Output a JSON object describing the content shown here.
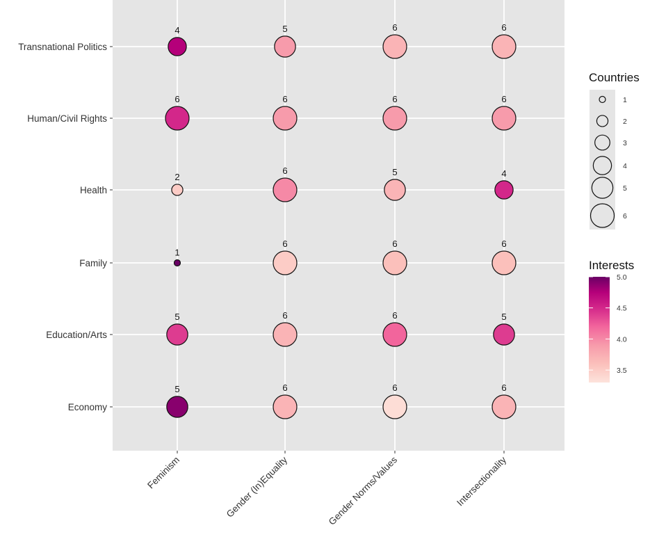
{
  "chart_data": {
    "type": "scatter",
    "title": "",
    "xlabel": "",
    "ylabel": "",
    "x_categories": [
      "Feminism",
      "Gender (In)Equality",
      "Gender Norms/Values",
      "Intersectionality"
    ],
    "y_categories": [
      "Transnational Politics",
      "Human/Civil Rights",
      "Health",
      "Family",
      "Education/Arts",
      "Economy"
    ],
    "points": [
      {
        "x": "Feminism",
        "y": "Transnational Politics",
        "countries": 4,
        "interests": 4.75
      },
      {
        "x": "Gender (In)Equality",
        "y": "Transnational Politics",
        "countries": 5,
        "interests": 3.9
      },
      {
        "x": "Gender Norms/Values",
        "y": "Transnational Politics",
        "countries": 6,
        "interests": 3.7
      },
      {
        "x": "Intersectionality",
        "y": "Transnational Politics",
        "countries": 6,
        "interests": 3.7
      },
      {
        "x": "Feminism",
        "y": "Human/Civil Rights",
        "countries": 6,
        "interests": 4.5
      },
      {
        "x": "Gender (In)Equality",
        "y": "Human/Civil Rights",
        "countries": 6,
        "interests": 3.9
      },
      {
        "x": "Gender Norms/Values",
        "y": "Human/Civil Rights",
        "countries": 6,
        "interests": 3.9
      },
      {
        "x": "Intersectionality",
        "y": "Human/Civil Rights",
        "countries": 6,
        "interests": 3.9
      },
      {
        "x": "Feminism",
        "y": "Health",
        "countries": 2,
        "interests": 3.5
      },
      {
        "x": "Gender (In)Equality",
        "y": "Health",
        "countries": 6,
        "interests": 4.0
      },
      {
        "x": "Gender Norms/Values",
        "y": "Health",
        "countries": 5,
        "interests": 3.7
      },
      {
        "x": "Intersectionality",
        "y": "Health",
        "countries": 4,
        "interests": 4.5
      },
      {
        "x": "Feminism",
        "y": "Family",
        "countries": 1,
        "interests": 5.0
      },
      {
        "x": "Gender (In)Equality",
        "y": "Family",
        "countries": 6,
        "interests": 3.5
      },
      {
        "x": "Gender Norms/Values",
        "y": "Family",
        "countries": 6,
        "interests": 3.6
      },
      {
        "x": "Intersectionality",
        "y": "Family",
        "countries": 6,
        "interests": 3.6
      },
      {
        "x": "Feminism",
        "y": "Education/Arts",
        "countries": 5,
        "interests": 4.4
      },
      {
        "x": "Gender (In)Equality",
        "y": "Education/Arts",
        "countries": 6,
        "interests": 3.7
      },
      {
        "x": "Gender Norms/Values",
        "y": "Education/Arts",
        "countries": 6,
        "interests": 4.2
      },
      {
        "x": "Intersectionality",
        "y": "Education/Arts",
        "countries": 5,
        "interests": 4.4
      },
      {
        "x": "Feminism",
        "y": "Economy",
        "countries": 5,
        "interests": 4.9
      },
      {
        "x": "Gender (In)Equality",
        "y": "Economy",
        "countries": 6,
        "interests": 3.7
      },
      {
        "x": "Gender Norms/Values",
        "y": "Economy",
        "countries": 6,
        "interests": 3.35
      },
      {
        "x": "Intersectionality",
        "y": "Economy",
        "countries": 6,
        "interests": 3.7
      }
    ],
    "size_legend": {
      "title": "Countries",
      "values": [
        1,
        2,
        3,
        4,
        5,
        6
      ]
    },
    "color_legend": {
      "title": "Interests",
      "ticks": [
        "5.0",
        "4.5",
        "4.0",
        "3.5"
      ],
      "range": [
        3.3,
        5.0
      ]
    },
    "color_stops": [
      {
        "v": 3.3,
        "c": "#fde3dc"
      },
      {
        "v": 3.6,
        "c": "#fbc0bb"
      },
      {
        "v": 3.9,
        "c": "#f79bab"
      },
      {
        "v": 4.2,
        "c": "#f2659c"
      },
      {
        "v": 4.5,
        "c": "#d3278a"
      },
      {
        "v": 4.75,
        "c": "#b5007a"
      },
      {
        "v": 5.0,
        "c": "#6a0065"
      }
    ],
    "grid": true,
    "legend_position": "right"
  }
}
